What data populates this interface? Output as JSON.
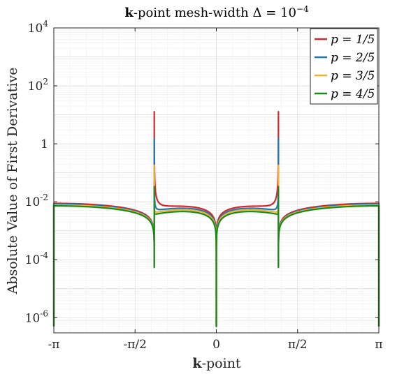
{
  "chart_data": {
    "type": "line",
    "title_bold": "k",
    "title_rest": "-point mesh-width Δ = 10",
    "title_exponent": "−4",
    "xlabel_bold": "k",
    "xlabel_rest": "-point",
    "ylabel": "Absolute Value of First Derivative",
    "x_scale": "linear",
    "y_scale": "log",
    "xlim": [
      -3.14159,
      3.14159
    ],
    "ylim": [
      3e-07,
      10000
    ],
    "grid": true,
    "legend_position": "top-right",
    "x_ticks": [
      {
        "value": -3.14159,
        "label": "-π"
      },
      {
        "value": -1.5708,
        "label": "-π/2"
      },
      {
        "value": 0,
        "label": "0"
      },
      {
        "value": 1.5708,
        "label": "π/2"
      },
      {
        "value": 3.14159,
        "label": "π"
      }
    ],
    "y_ticks": [
      {
        "value": 10000,
        "label": "10",
        "exp": "4"
      },
      {
        "value": 100,
        "label": "10",
        "exp": "2"
      },
      {
        "value": 1,
        "label": "1",
        "exp": ""
      },
      {
        "value": 0.01,
        "label": "10",
        "exp": "-2"
      },
      {
        "value": 0.0001,
        "label": "10",
        "exp": "-4"
      },
      {
        "value": 1e-06,
        "label": "10",
        "exp": "-6"
      }
    ],
    "series": [
      {
        "name": "p = 1/5",
        "color": "#d62728",
        "peak": 13,
        "cusp": 0.008,
        "plateau": 0.0088
      },
      {
        "name": "p = 2/5",
        "color": "#1f77b4",
        "peak": 1.5,
        "cusp": 0.0072,
        "plateau": 0.0082
      },
      {
        "name": "p = 3/5",
        "color": "#f2b134",
        "peak": 0.18,
        "cusp": 0.0064,
        "plateau": 0.0077
      },
      {
        "name": "p = 4/5",
        "color": "#1a8a16",
        "peak": 0.03,
        "cusp": 0.0056,
        "plateau": 0.0072
      }
    ]
  }
}
